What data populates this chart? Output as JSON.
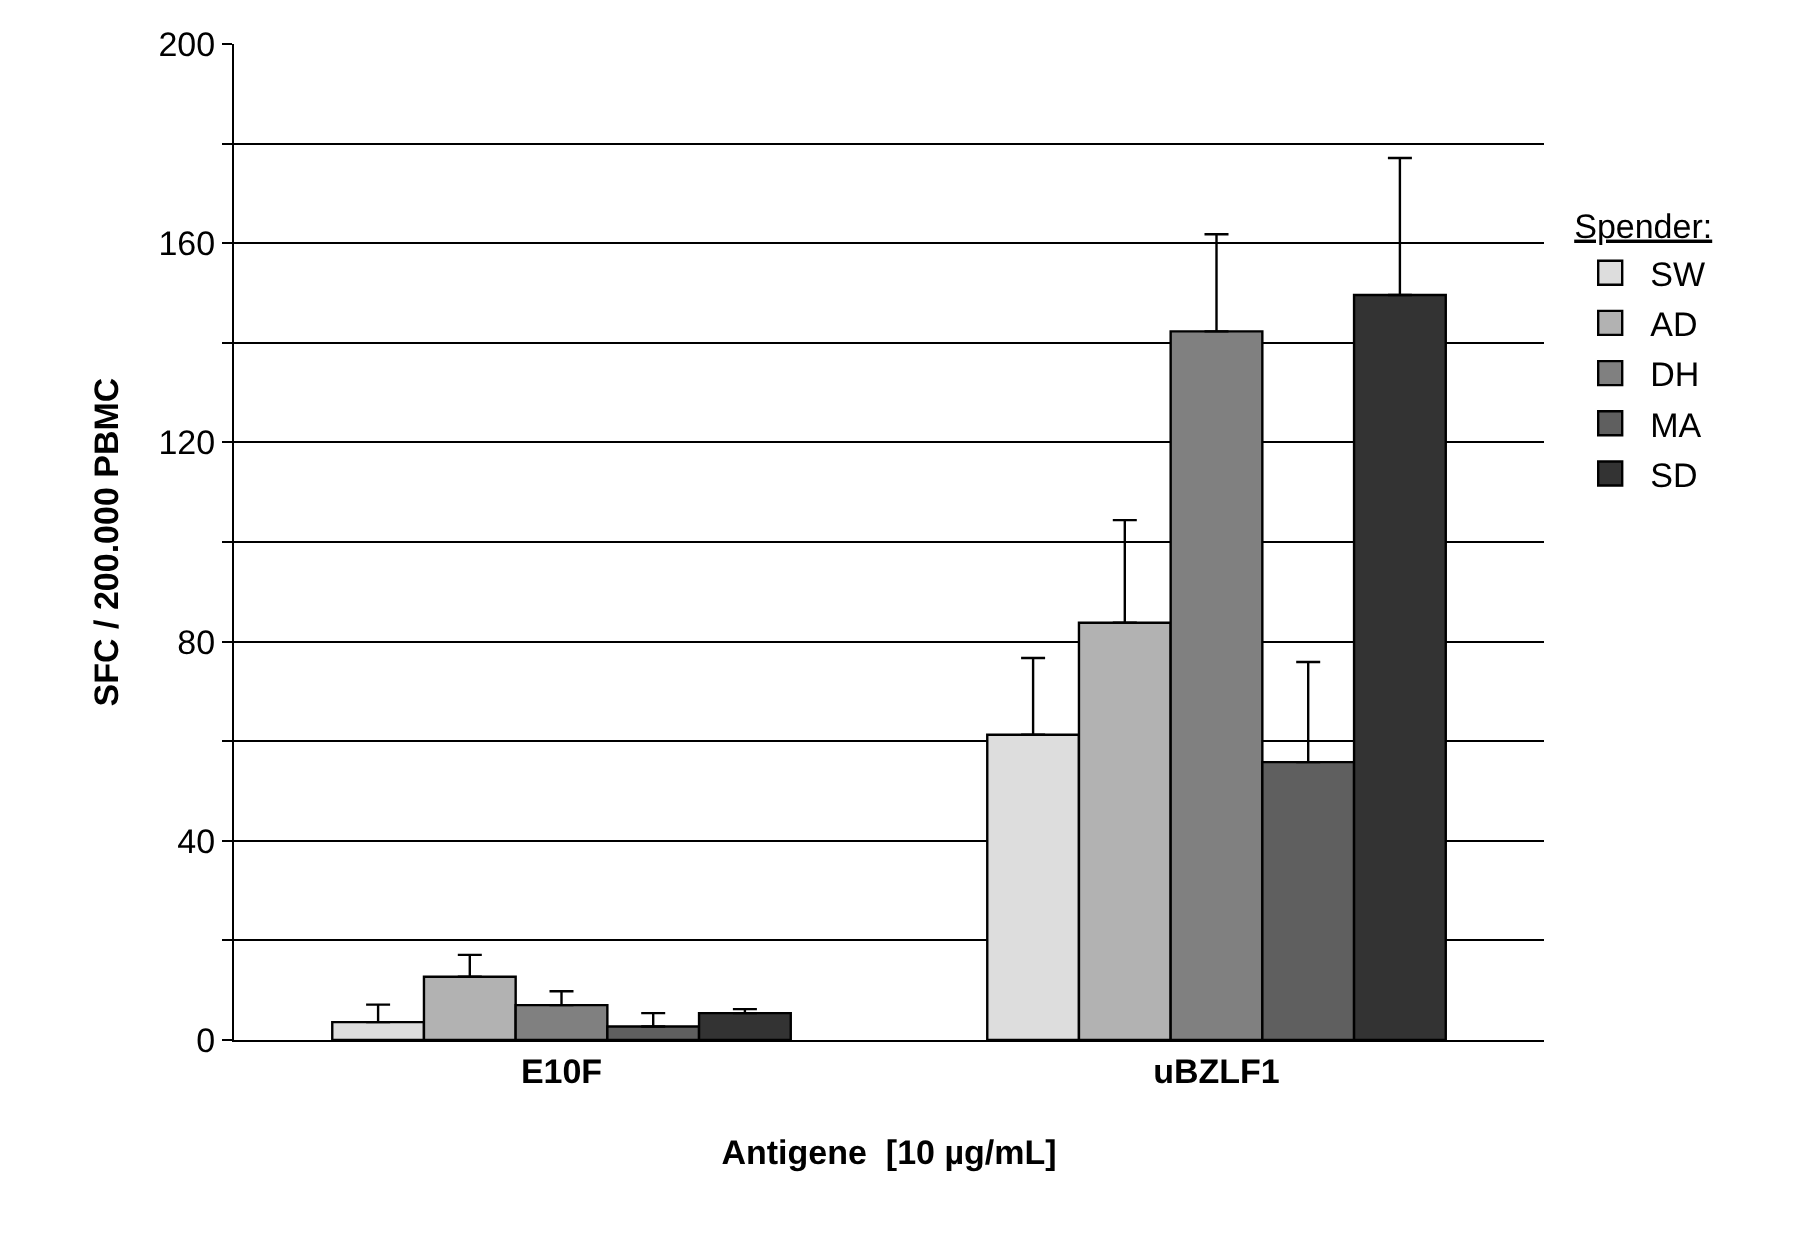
{
  "chart_data": {
    "type": "bar",
    "xlabel": "Antigene  [10 µg/mL]",
    "ylabel": "SFC / 200.000 PBMC",
    "legend_title": "Spender:",
    "categories": [
      "E10F",
      "uBZLF1"
    ],
    "series": [
      {
        "name": "SW",
        "color": "#dddddd",
        "values": [
          3.6,
          61.3
        ],
        "errors": [
          [
            3.6,
            7.1
          ],
          [
            61.3,
            76.7
          ]
        ]
      },
      {
        "name": "AD",
        "color": "#b2b2b2",
        "values": [
          12.7,
          83.8
        ],
        "errors": [
          [
            12.7,
            17.1
          ],
          [
            83.8,
            104.4
          ]
        ]
      },
      {
        "name": "DH",
        "color": "#808080",
        "values": [
          7.0,
          142.3
        ],
        "errors": [
          [
            7.0,
            9.8
          ],
          [
            142.3,
            161.8
          ]
        ]
      },
      {
        "name": "MA",
        "color": "#5f5f5f",
        "values": [
          2.7,
          55.8
        ],
        "errors": [
          [
            2.7,
            5.4
          ],
          [
            55.8,
            75.9
          ]
        ]
      },
      {
        "name": "SD",
        "color": "#333333",
        "values": [
          5.4,
          149.6
        ],
        "errors": [
          [
            5.4,
            6.2
          ],
          [
            149.6,
            177.1
          ]
        ]
      }
    ],
    "ylim": [
      0,
      200
    ],
    "yticks": [
      0,
      {
        "value": 20,
        "label": null
      },
      40,
      {
        "value": 60,
        "label": null
      },
      80,
      {
        "value": 100,
        "label": null
      },
      120,
      {
        "value": 140,
        "label": null
      },
      160,
      {
        "value": 180,
        "label": null
      },
      200
    ],
    "grid": "y",
    "legend": "right"
  }
}
